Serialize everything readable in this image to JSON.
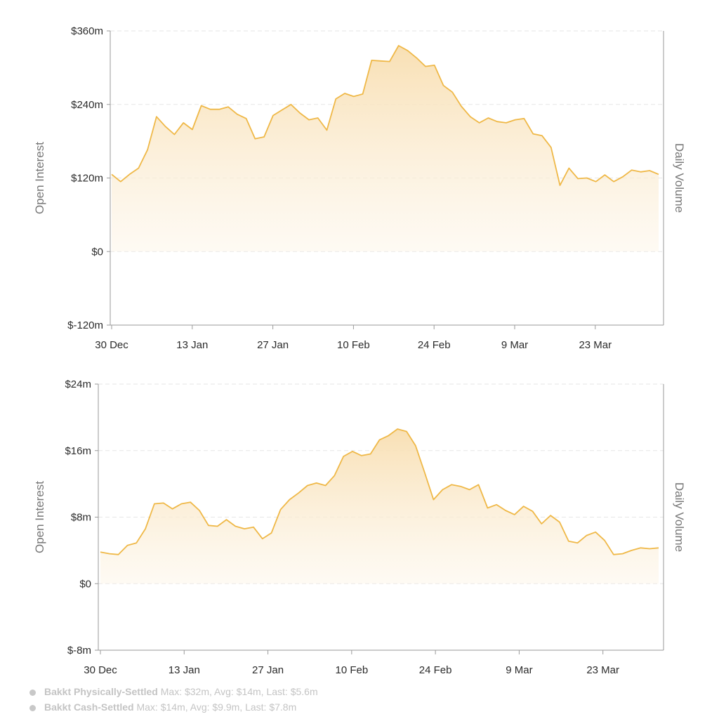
{
  "chart_data": [
    {
      "type": "area",
      "ylabel": "Open Interest",
      "y2label": "Daily Volume",
      "y_ticks": [
        "$360m",
        "$240m",
        "$120m",
        "$0",
        "$-120m"
      ],
      "ylim": [
        -120,
        360
      ],
      "x_ticks": [
        {
          "label": "30 Dec",
          "x": 0
        },
        {
          "label": "13 Jan",
          "x": 14
        },
        {
          "label": "27 Jan",
          "x": 28
        },
        {
          "label": "10 Feb",
          "x": 42
        },
        {
          "label": "24 Feb",
          "x": 56
        },
        {
          "label": "9 Mar",
          "x": 70
        },
        {
          "label": "23 Mar",
          "x": 84
        }
      ],
      "grid": true,
      "series": [
        {
          "unit": "$m",
          "values": [
            126,
            114,
            126,
            136,
            166,
            220,
            204,
            191,
            210,
            199,
            238,
            232,
            232,
            236,
            224,
            217,
            184,
            187,
            222,
            231,
            240,
            226,
            215,
            218,
            198,
            249,
            258,
            253,
            257,
            312,
            311,
            310,
            336,
            328,
            316,
            302,
            304,
            271,
            260,
            237,
            220,
            210,
            218,
            212,
            210,
            215,
            217,
            192,
            189,
            170,
            108,
            136,
            119,
            120,
            114,
            125,
            114,
            122,
            133,
            130,
            132,
            126
          ]
        }
      ],
      "colors": {
        "line": "#efb847",
        "fill": "#f9e4bd"
      }
    },
    {
      "type": "area",
      "ylabel": "Open Interest",
      "y2label": "Daily Volume",
      "y_ticks": [
        "$24m",
        "$16m",
        "$8m",
        "$0",
        "$-8m"
      ],
      "ylim": [
        -8,
        24
      ],
      "x_ticks": [
        {
          "label": "30 Dec",
          "x": 0
        },
        {
          "label": "13 Jan",
          "x": 14
        },
        {
          "label": "27 Jan",
          "x": 28
        },
        {
          "label": "10 Feb",
          "x": 42
        },
        {
          "label": "24 Feb",
          "x": 56
        },
        {
          "label": "9 Mar",
          "x": 70
        },
        {
          "label": "23 Mar",
          "x": 84
        }
      ],
      "grid": true,
      "series": [
        {
          "unit": "$m",
          "values": [
            3.8,
            3.6,
            3.5,
            4.6,
            4.9,
            6.6,
            9.6,
            9.7,
            9.0,
            9.6,
            9.8,
            8.8,
            7.0,
            6.9,
            7.7,
            6.9,
            6.6,
            6.8,
            5.4,
            6.1,
            8.9,
            10.1,
            10.9,
            11.8,
            12.1,
            11.8,
            13.0,
            15.3,
            15.9,
            15.4,
            15.6,
            17.3,
            17.8,
            18.6,
            18.3,
            16.6,
            13.4,
            10.1,
            11.3,
            11.9,
            11.7,
            11.3,
            11.9,
            9.1,
            9.5,
            8.8,
            8.3,
            9.3,
            8.7,
            7.2,
            8.2,
            7.4,
            5.1,
            4.9,
            5.8,
            6.2,
            5.2,
            3.5,
            3.6,
            4.0,
            4.3,
            4.2,
            4.3
          ]
        }
      ],
      "colors": {
        "line": "#efb847",
        "fill": "#f9e4bd"
      }
    }
  ],
  "legend": [
    {
      "name": "Bakkt Physically-Settled",
      "stats": "Max: $32m, Avg: $14m, Last: $5.6m"
    },
    {
      "name": "Bakkt Cash-Settled",
      "stats": "Max: $14m, Avg: $9.9m, Last: $7.8m"
    }
  ]
}
